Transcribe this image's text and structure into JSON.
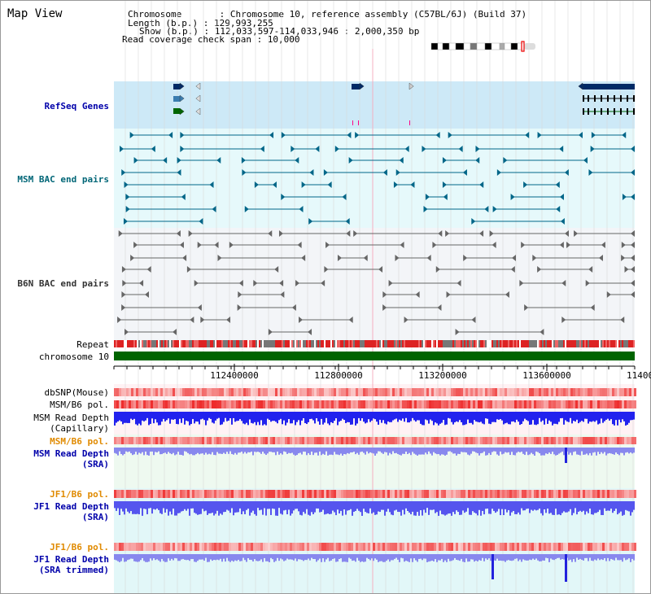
{
  "view_title": "Map View",
  "info": {
    "chromosome": "Chromosome       : Chromosome 10, reference assembly (C57BL/6J) (Build 37)",
    "length": "Length (b.p.) : 129,993,255",
    "show": "Show (b.p.) : 112,033,597-114,033,946 : 2,000,350 bp",
    "coverage": "Read coverage check span : 10,000"
  },
  "tracks": {
    "refseq": "RefSeq Genes",
    "msm_bac": "MSM BAC end pairs",
    "b6n_bac": "B6N BAC end pairs",
    "repeat": "Repeat",
    "chromosome": "chromosome 10",
    "dbsnp": "dbSNP(Mouse)",
    "msm_b6_pol_1": "MSM/B6 pol.",
    "msm_depth_cap_1": "MSM Read Depth",
    "msm_depth_cap_2": "(Capillary)",
    "msm_b6_pol_2": "MSM/B6 pol.",
    "msm_depth_sra_1": "MSM Read Depth",
    "msm_depth_sra_2": "(SRA)",
    "jf1_b6_pol_1": "JF1/B6 pol.",
    "jf1_depth_sra_1": "JF1 Read Depth",
    "jf1_depth_sra_2": "(SRA)",
    "jf1_b6_pol_2": "JF1/B6 pol.",
    "jf1_depth_trim_1": "JF1 Read Depth",
    "jf1_depth_trim_2": "(SRA trimmed)"
  },
  "ruler": {
    "ticks": [
      "112400000",
      "112800000",
      "113200000",
      "113600000",
      "11400"
    ]
  },
  "colors": {
    "refseq_bg": "#cde9f7",
    "bac_bg": "#e6f9fb",
    "gene": "#002a66",
    "gene_mid": "#3a7db0",
    "gene_green": "#006600",
    "bac_msm": "#006688",
    "bac_b6n": "#666666",
    "chromosome_bar": "#006400",
    "snp": "#f08080",
    "depth": "#2222ee",
    "depth_light": "#8888ee"
  }
}
